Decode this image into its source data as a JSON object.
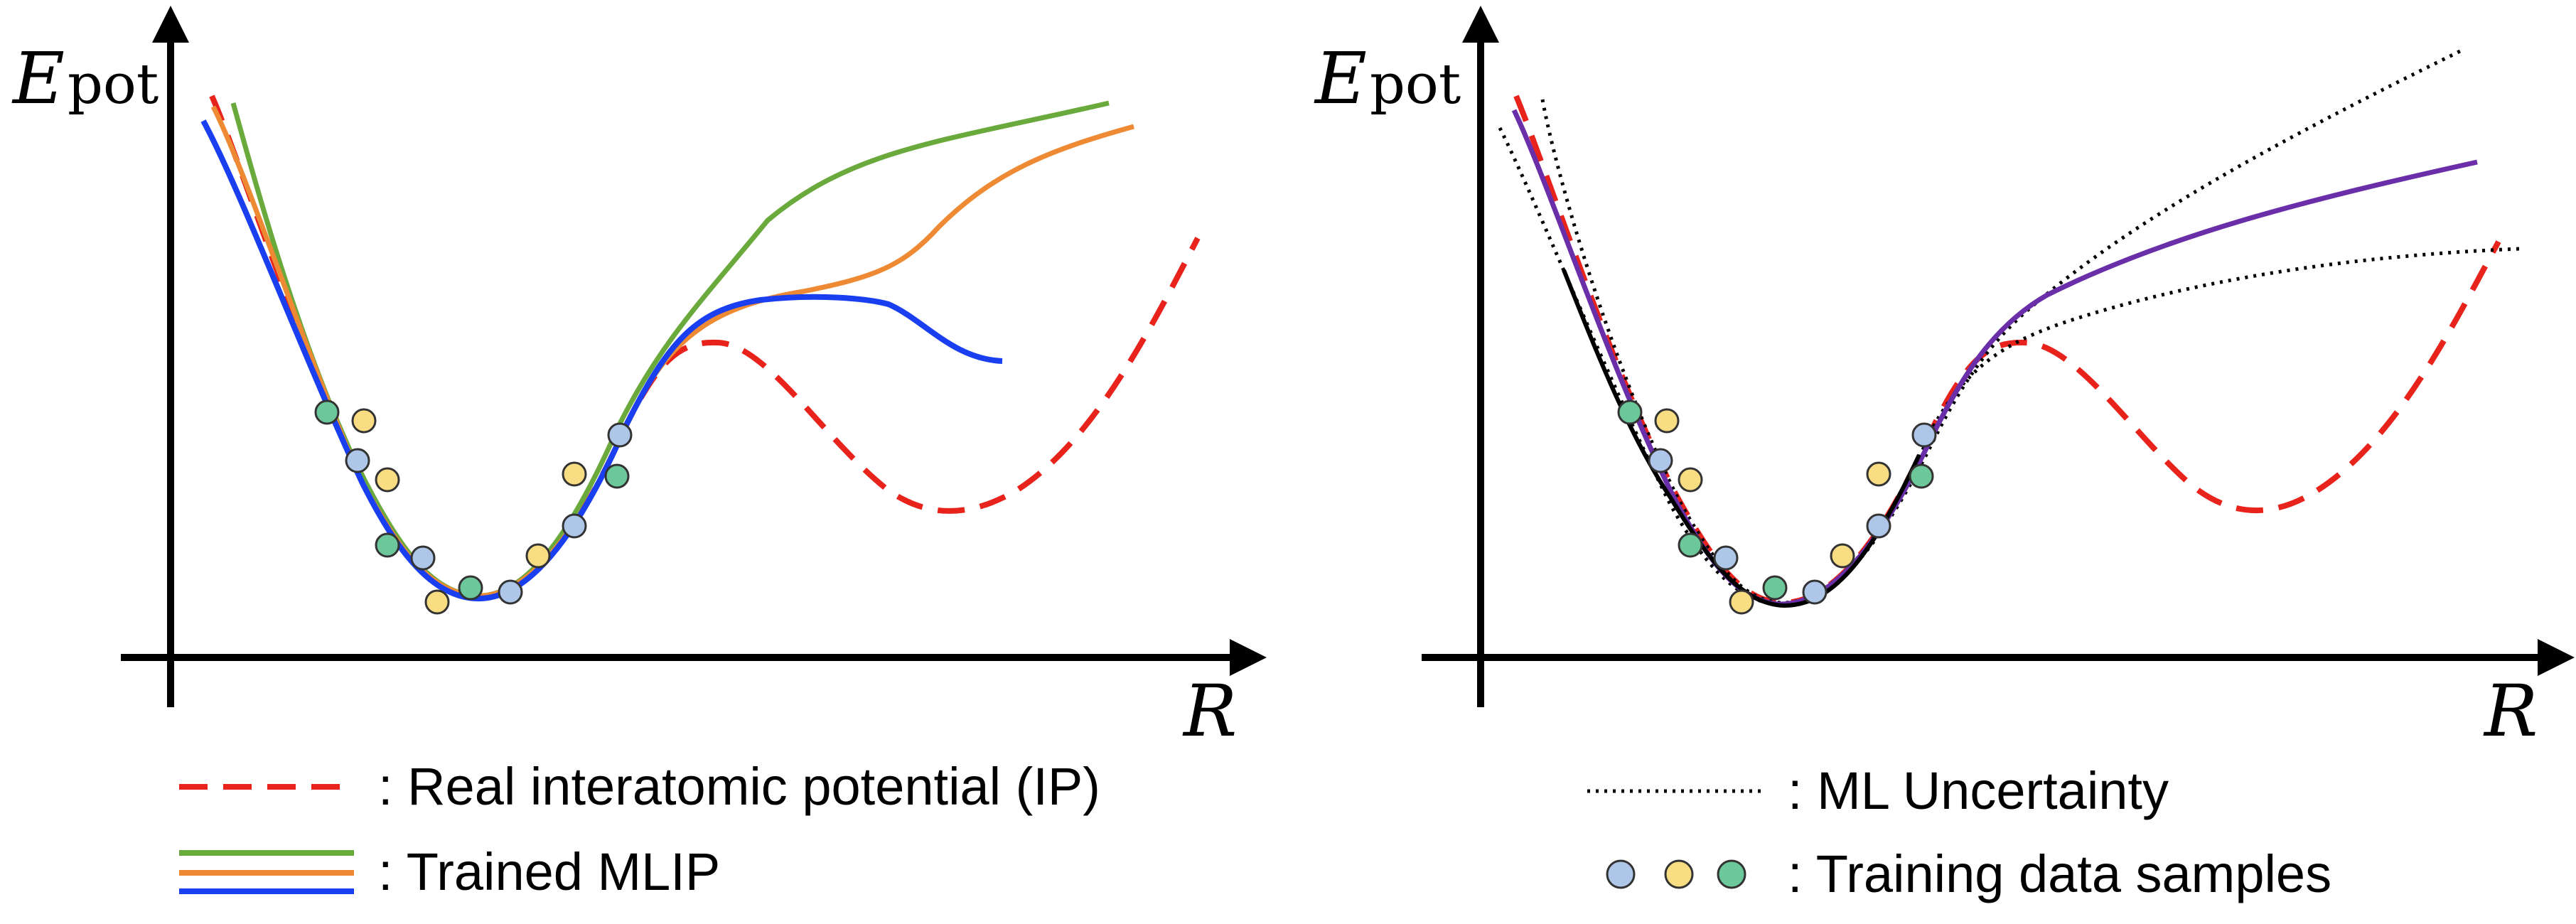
{
  "left_panel": {
    "y_axis_label": "E",
    "y_axis_label_sub": "pot",
    "x_axis_label": "R"
  },
  "right_panel": {
    "y_axis_label": "E",
    "y_axis_label_sub": "pot",
    "x_axis_label": "R"
  },
  "legend_left": {
    "real_ip_label": ": Real interatomic potential (IP)",
    "mlip_label": ": Trained MLIP"
  },
  "legend_right": {
    "uncertainty_label": ": ML Uncertainty",
    "samples_label": ": Training data samples"
  },
  "colors": {
    "real_ip": "#e8231c",
    "mlip_green": "#6aaa3c",
    "mlip_orange": "#ee8a34",
    "mlip_blue": "#1a3ff0",
    "ml_mean": "#6a2fa8",
    "uncertainty": "#000000",
    "sample_blue": "#aec6e8",
    "sample_yellow": "#f9dd82",
    "sample_green": "#6cc79a"
  }
}
